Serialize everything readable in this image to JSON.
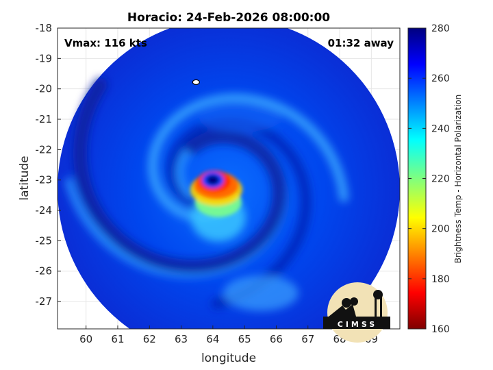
{
  "chart_data": {
    "type": "heatmap",
    "title": "Horacio: 24-Feb-2026 08:00:00",
    "xlabel": "longitude",
    "ylabel": "latitude",
    "xlim": [
      59.1,
      69.9
    ],
    "ylim": [
      -27.9,
      -18
    ],
    "x_ticks": [
      60,
      61,
      62,
      63,
      64,
      65,
      66,
      67,
      68,
      69
    ],
    "y_ticks": [
      -18,
      -19,
      -20,
      -21,
      -22,
      -23,
      -24,
      -25,
      -26,
      -27
    ],
    "grid": true,
    "annotations": {
      "vmax": "Vmax: 116 kts",
      "time_away": "01:32 away"
    },
    "storm_center": {
      "lon": 64.0,
      "lat": -23.0
    },
    "swath": {
      "center_lon": 64.5,
      "center_lat": -23.3,
      "radius_deg": 5.4
    },
    "colorbar": {
      "label": "Brightness Temp - Horizontal Polarization",
      "min": 160,
      "max": 280,
      "ticks": [
        160,
        180,
        200,
        220,
        240,
        260,
        280
      ],
      "colormap": "jet"
    },
    "logo_text": "CIMSS"
  }
}
